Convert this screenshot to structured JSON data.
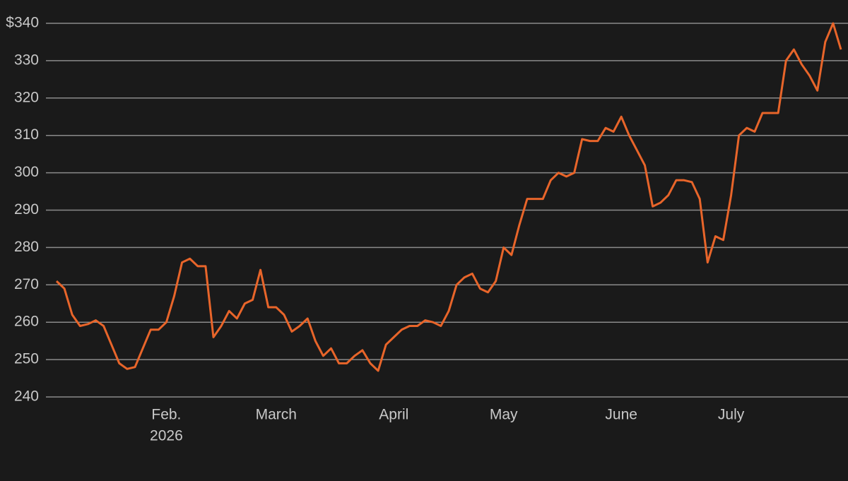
{
  "chart_data": {
    "type": "line",
    "categories": [
      null,
      null,
      null,
      null,
      null,
      null,
      null,
      null,
      null,
      null,
      null,
      null,
      null,
      null,
      "Feb.",
      null,
      null,
      null,
      null,
      null,
      null,
      null,
      null,
      null,
      null,
      null,
      null,
      null,
      "March",
      null,
      null,
      null,
      null,
      null,
      null,
      null,
      null,
      null,
      null,
      null,
      null,
      null,
      null,
      "April",
      null,
      null,
      null,
      null,
      null,
      null,
      null,
      null,
      null,
      null,
      null,
      null,
      null,
      "May",
      null,
      null,
      null,
      null,
      null,
      null,
      null,
      null,
      null,
      null,
      null,
      null,
      null,
      null,
      "June",
      null,
      null,
      null,
      null,
      null,
      null,
      null,
      null,
      null,
      null,
      null,
      null,
      null,
      "July",
      null,
      null,
      null,
      null,
      null,
      null,
      null,
      null,
      null,
      null,
      null,
      null,
      null,
      null
    ],
    "year": "2026",
    "series": [
      {
        "color": "#e8652a",
        "values": [
          271,
          269,
          262,
          259,
          259.5,
          260.5,
          259,
          254,
          249,
          247.5,
          248,
          253,
          258,
          258,
          260,
          267,
          276,
          277,
          275,
          275,
          256,
          259,
          263,
          261,
          265,
          266,
          274,
          264,
          264,
          262,
          257.5,
          259,
          261,
          255,
          251,
          253,
          249,
          249,
          251,
          252.5,
          249,
          247,
          254,
          256,
          258,
          259,
          259,
          260.5,
          260,
          259,
          263,
          270,
          272,
          273,
          269,
          268,
          271,
          280,
          278,
          286,
          293,
          293,
          293,
          298,
          300,
          299,
          300,
          309,
          308.5,
          308.5,
          312,
          311,
          315,
          310,
          306,
          302,
          291,
          292,
          294,
          298,
          298,
          297.5,
          293,
          276,
          283,
          282,
          294,
          310,
          312,
          311,
          316,
          316,
          316,
          330,
          333,
          329,
          326,
          322,
          335,
          340,
          333
        ]
      }
    ],
    "ylim": [
      240,
      340
    ],
    "yticks": [
      240,
      250,
      260,
      270,
      280,
      290,
      300,
      310,
      320,
      330,
      {
        "value": 340,
        "label": "$340"
      }
    ],
    "grid": true
  }
}
